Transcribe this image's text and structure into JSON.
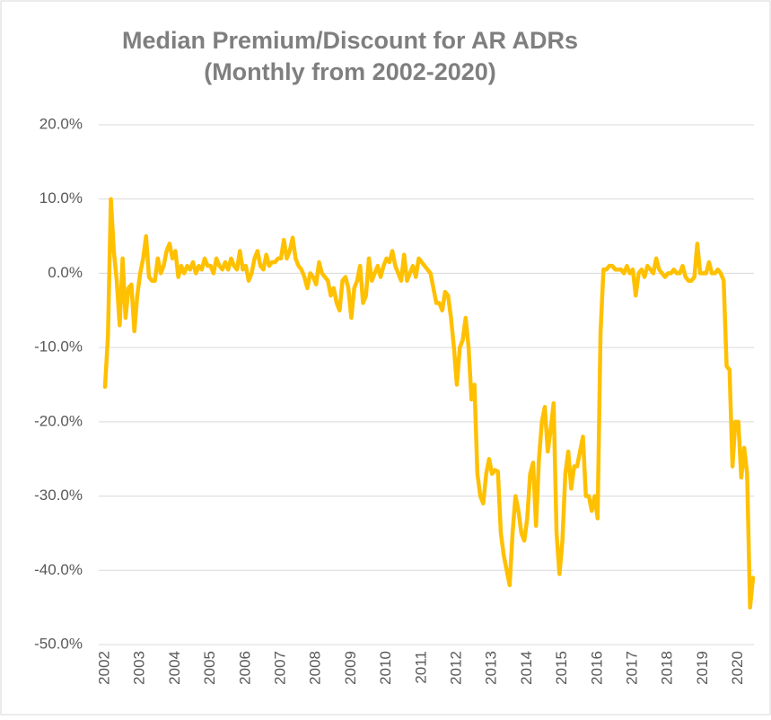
{
  "chart_data": {
    "type": "line",
    "title": "Median Premium/Discount for AR ADRs",
    "subtitle": "(Monthly from 2002-2020)",
    "categories": [
      "2002",
      null,
      null,
      null,
      null,
      null,
      null,
      null,
      null,
      null,
      null,
      null,
      "2003",
      null,
      null,
      null,
      null,
      null,
      null,
      null,
      null,
      null,
      null,
      null,
      "2004",
      null,
      null,
      null,
      null,
      null,
      null,
      null,
      null,
      null,
      null,
      null,
      "2005",
      null,
      null,
      null,
      null,
      null,
      null,
      null,
      null,
      null,
      null,
      null,
      "2006",
      null,
      null,
      null,
      null,
      null,
      null,
      null,
      null,
      null,
      null,
      null,
      "2007",
      null,
      null,
      null,
      null,
      null,
      null,
      null,
      null,
      null,
      null,
      null,
      "2008",
      null,
      null,
      null,
      null,
      null,
      null,
      null,
      null,
      null,
      null,
      null,
      "2009",
      null,
      null,
      null,
      null,
      null,
      null,
      null,
      null,
      null,
      null,
      null,
      "2010",
      null,
      null,
      null,
      null,
      null,
      null,
      null,
      null,
      null,
      null,
      null,
      "2011",
      null,
      null,
      null,
      null,
      null,
      null,
      null,
      null,
      null,
      null,
      null,
      "2012",
      null,
      null,
      null,
      null,
      null,
      null,
      null,
      null,
      null,
      null,
      null,
      "2013",
      null,
      null,
      null,
      null,
      null,
      null,
      null,
      null,
      null,
      null,
      null,
      "2014",
      null,
      null,
      null,
      null,
      null,
      null,
      null,
      null,
      null,
      null,
      null,
      "2015",
      null,
      null,
      null,
      null,
      null,
      null,
      null,
      null,
      null,
      null,
      null,
      "2016",
      null,
      null,
      null,
      null,
      null,
      null,
      null,
      null,
      null,
      null,
      null,
      "2017",
      null,
      null,
      null,
      null,
      null,
      null,
      null,
      null,
      null,
      null,
      null,
      "2018",
      null,
      null,
      null,
      null,
      null,
      null,
      null,
      null,
      null,
      null,
      null,
      "2019",
      null,
      null,
      null,
      null,
      null,
      null,
      null,
      null,
      null,
      null,
      null,
      "2020",
      null,
      null,
      null,
      null,
      null
    ],
    "series": [
      {
        "color": "#ffc000",
        "values": [
          -15.3,
          -8.5,
          10,
          3,
          -1,
          -7,
          2,
          -6,
          -2,
          -1.5,
          -7.8,
          -3,
          0,
          2,
          5,
          -0.5,
          -1,
          -1,
          2,
          0,
          1,
          3,
          4,
          2,
          3,
          -0.5,
          1,
          0,
          1,
          0.5,
          1.5,
          0,
          1,
          0.5,
          2,
          1,
          1,
          0,
          2,
          1,
          0.5,
          1.5,
          0.5,
          2,
          1,
          0.5,
          3,
          0.5,
          1,
          -1,
          0,
          2,
          3,
          1,
          0.5,
          2.5,
          1,
          1.5,
          1.5,
          2,
          2,
          4.5,
          2,
          3,
          4.8,
          2,
          1,
          0.5,
          -0.5,
          -2,
          0,
          -0.5,
          -1.5,
          1.5,
          0,
          -0.5,
          -1,
          -3,
          -2,
          -4,
          -5,
          -1,
          -0.5,
          -2,
          -6,
          -2,
          -1,
          1,
          -4,
          -3,
          2,
          -1,
          0,
          1,
          -0.5,
          1,
          2,
          1.5,
          3,
          1,
          0,
          -1,
          2.5,
          -1,
          0,
          1,
          -0.5,
          2,
          1.5,
          1,
          0.5,
          0,
          -2,
          -4,
          -4,
          -5,
          -2.5,
          -3,
          -6,
          -10,
          -15,
          -10,
          -9,
          -6,
          -10,
          -17,
          -15,
          -27,
          -30,
          -31,
          -27,
          -25,
          -27,
          -26.5,
          -26.7,
          -35,
          -38,
          -40,
          -42,
          -35,
          -30,
          -32,
          -35,
          -36,
          -33,
          -27,
          -25.5,
          -34,
          -25,
          -20,
          -18,
          -24,
          -21,
          -17.5,
          -35,
          -40.5,
          -36,
          -27,
          -24,
          -29,
          -26,
          -26,
          -24,
          -22,
          -30,
          -30,
          -32,
          -30,
          -33,
          -8,
          0.5,
          0.5,
          1,
          1,
          0.5,
          0.5,
          0.5,
          0,
          1,
          0,
          0.5,
          -3,
          0,
          0.5,
          -0.5,
          1,
          0.5,
          0,
          2,
          0.5,
          0,
          -0.5,
          0,
          0,
          0.5,
          0,
          0,
          1,
          -0.5,
          -1,
          -1,
          -0.5,
          4,
          0,
          0,
          0,
          1.5,
          0,
          0,
          0.5,
          0,
          -1,
          -12.5,
          -13,
          -26,
          -20,
          -20,
          -27.5,
          -23.5,
          -27,
          -45,
          -41
        ]
      }
    ],
    "ylim": [
      -50,
      20
    ],
    "yticks": [
      {
        "value": -50,
        "label": "-50.0%"
      },
      {
        "value": -40,
        "label": "-40.0%"
      },
      {
        "value": -30,
        "label": "-30.0%"
      },
      {
        "value": -20,
        "label": "-20.0%"
      },
      {
        "value": -10,
        "label": "-10.0%"
      },
      {
        "value": 0,
        "label": "0.0%"
      },
      {
        "value": 10,
        "label": "10.0%"
      },
      {
        "value": 20,
        "label": "20.0%"
      }
    ],
    "grid": true
  }
}
